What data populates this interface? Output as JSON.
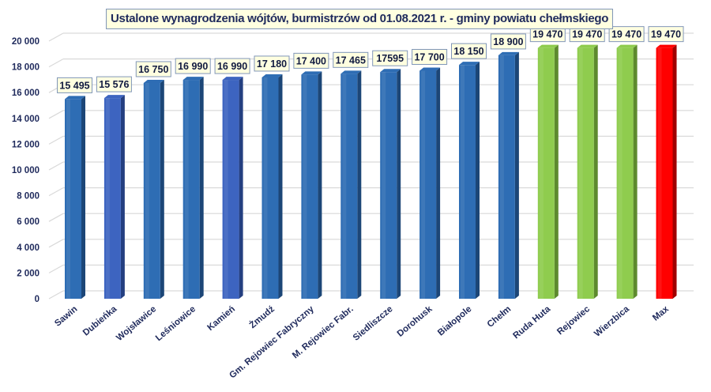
{
  "chart_data": {
    "type": "bar",
    "title": "Ustalone wynagrodzenia wójtów, burmistrzów od 01.08.2021 r. - gminy powiatu chełmskiego",
    "xlabel": "",
    "ylabel": "",
    "ylim": [
      0,
      20000
    ],
    "yticks": [
      0,
      2000,
      4000,
      6000,
      8000,
      10000,
      12000,
      14000,
      16000,
      18000,
      20000
    ],
    "ytick_labels": [
      "0",
      "2 000",
      "4 000",
      "6 000",
      "8 000",
      "10 000",
      "12 000",
      "14 000",
      "16 000",
      "18 000",
      "20 000"
    ],
    "grid": true,
    "legend": "none",
    "categories": [
      "Sawin",
      "Dubieńka",
      "Wojsławice",
      "Leśniowice",
      "Kamień",
      "Żmudź",
      "Gm. Rejowiec Fabryczny",
      "M. Rejowiec Fabr.",
      "Siedliszcze",
      "Dorohusk",
      "Białopole",
      "Chełm",
      "Ruda Huta",
      "Rejowiec",
      "Wierzbica",
      "Max"
    ],
    "values": [
      15495,
      15576,
      16750,
      16990,
      16990,
      17180,
      17400,
      17465,
      17595,
      17700,
      18150,
      18900,
      19470,
      19470,
      19470,
      19470
    ],
    "data_labels": [
      "15 495",
      "15 576",
      "16 750",
      "16 990",
      "16 990",
      "17 180",
      "17 400",
      "17 465",
      "17595",
      "17 700",
      "18 150",
      "18 900",
      "19 470",
      "19 470",
      "19 470",
      "19 470"
    ],
    "colors": [
      "#2e6db4",
      "#3d64c0",
      "#2e6db4",
      "#2e6db4",
      "#3d64c0",
      "#2e6db4",
      "#2e6db4",
      "#2e6db4",
      "#2e6db4",
      "#2e6db4",
      "#2e6db4",
      "#2e6db4",
      "#8fcc4e",
      "#8fcc4e",
      "#8fcc4e",
      "#ff0000"
    ],
    "side_colors": [
      "#1c4677",
      "#243f80",
      "#1c4677",
      "#1c4677",
      "#243f80",
      "#1c4677",
      "#1c4677",
      "#1c4677",
      "#1c4677",
      "#1c4677",
      "#1c4677",
      "#1c4677",
      "#5d8a2e",
      "#5d8a2e",
      "#5d8a2e",
      "#a00000"
    ]
  }
}
